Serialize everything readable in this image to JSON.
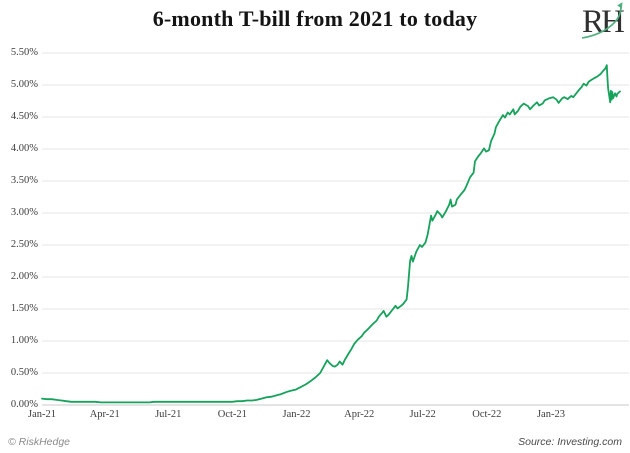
{
  "header": {
    "title": "6-month T-bill from 2021 to today",
    "logo_text": "RH"
  },
  "footer": {
    "left": "© RiskHedge",
    "right": "Source: Investing.com"
  },
  "colors": {
    "line": "#17a25c",
    "grid": "#e5e5e5",
    "axis_line": "#c9c9c9",
    "axis_text": "#3c3c3c",
    "title_text": "#141414",
    "logo_text": "#303030",
    "logo_arrow": "#4fae7e"
  },
  "chart_data": {
    "type": "line",
    "title": "6-month T-bill from 2021 to today",
    "xlabel": "",
    "ylabel": "",
    "ylim": [
      0,
      5.5
    ],
    "grid": "horizontal",
    "legend": "none",
    "y_ticks": [
      {
        "value": 0.0,
        "label": "0.00%"
      },
      {
        "value": 0.5,
        "label": "0.50%"
      },
      {
        "value": 1.0,
        "label": "1.00%"
      },
      {
        "value": 1.5,
        "label": "1.50%"
      },
      {
        "value": 2.0,
        "label": "2.00%"
      },
      {
        "value": 2.5,
        "label": "2.50%"
      },
      {
        "value": 3.0,
        "label": "3.00%"
      },
      {
        "value": 3.5,
        "label": "3.50%"
      },
      {
        "value": 4.0,
        "label": "4.00%"
      },
      {
        "value": 4.5,
        "label": "4.50%"
      },
      {
        "value": 5.0,
        "label": "5.00%"
      },
      {
        "value": 5.5,
        "label": "5.50%"
      }
    ],
    "x_ticks": [
      {
        "date": "2021-01-01",
        "label": "Jan-21"
      },
      {
        "date": "2021-04-01",
        "label": "Apr-21"
      },
      {
        "date": "2021-07-01",
        "label": "Jul-21"
      },
      {
        "date": "2021-10-01",
        "label": "Oct-21"
      },
      {
        "date": "2022-01-01",
        "label": "Jan-22"
      },
      {
        "date": "2022-04-01",
        "label": "Apr-22"
      },
      {
        "date": "2022-07-01",
        "label": "Jul-22"
      },
      {
        "date": "2022-10-01",
        "label": "Oct-22"
      },
      {
        "date": "2023-01-01",
        "label": "Jan-23"
      }
    ],
    "series": [
      {
        "name": "6-month T-bill yield (%)",
        "color": "#17a25c",
        "points": [
          [
            "2021-01-01",
            0.1
          ],
          [
            "2021-01-08",
            0.09
          ],
          [
            "2021-01-15",
            0.09
          ],
          [
            "2021-01-22",
            0.08
          ],
          [
            "2021-01-29",
            0.07
          ],
          [
            "2021-02-05",
            0.06
          ],
          [
            "2021-02-12",
            0.05
          ],
          [
            "2021-02-19",
            0.05
          ],
          [
            "2021-02-26",
            0.05
          ],
          [
            "2021-03-05",
            0.05
          ],
          [
            "2021-03-12",
            0.05
          ],
          [
            "2021-03-19",
            0.05
          ],
          [
            "2021-03-26",
            0.04
          ],
          [
            "2021-04-02",
            0.04
          ],
          [
            "2021-04-09",
            0.04
          ],
          [
            "2021-04-16",
            0.04
          ],
          [
            "2021-04-23",
            0.04
          ],
          [
            "2021-04-30",
            0.04
          ],
          [
            "2021-05-07",
            0.04
          ],
          [
            "2021-05-14",
            0.04
          ],
          [
            "2021-05-21",
            0.04
          ],
          [
            "2021-05-28",
            0.04
          ],
          [
            "2021-06-04",
            0.04
          ],
          [
            "2021-06-11",
            0.05
          ],
          [
            "2021-06-18",
            0.05
          ],
          [
            "2021-06-25",
            0.05
          ],
          [
            "2021-07-02",
            0.05
          ],
          [
            "2021-07-09",
            0.05
          ],
          [
            "2021-07-16",
            0.05
          ],
          [
            "2021-07-23",
            0.05
          ],
          [
            "2021-07-30",
            0.05
          ],
          [
            "2021-08-06",
            0.05
          ],
          [
            "2021-08-13",
            0.05
          ],
          [
            "2021-08-20",
            0.05
          ],
          [
            "2021-08-27",
            0.05
          ],
          [
            "2021-09-03",
            0.05
          ],
          [
            "2021-09-10",
            0.05
          ],
          [
            "2021-09-17",
            0.05
          ],
          [
            "2021-09-24",
            0.05
          ],
          [
            "2021-10-01",
            0.05
          ],
          [
            "2021-10-08",
            0.06
          ],
          [
            "2021-10-15",
            0.06
          ],
          [
            "2021-10-22",
            0.07
          ],
          [
            "2021-10-29",
            0.07
          ],
          [
            "2021-11-05",
            0.08
          ],
          [
            "2021-11-12",
            0.1
          ],
          [
            "2021-11-19",
            0.12
          ],
          [
            "2021-11-26",
            0.13
          ],
          [
            "2021-12-03",
            0.15
          ],
          [
            "2021-12-10",
            0.17
          ],
          [
            "2021-12-17",
            0.2
          ],
          [
            "2021-12-23",
            0.22
          ],
          [
            "2021-12-31",
            0.24
          ],
          [
            "2022-01-07",
            0.28
          ],
          [
            "2022-01-14",
            0.32
          ],
          [
            "2022-01-21",
            0.37
          ],
          [
            "2022-01-28",
            0.43
          ],
          [
            "2022-02-04",
            0.5
          ],
          [
            "2022-02-10",
            0.62
          ],
          [
            "2022-02-14",
            0.7
          ],
          [
            "2022-02-17",
            0.66
          ],
          [
            "2022-02-22",
            0.61
          ],
          [
            "2022-02-25",
            0.6
          ],
          [
            "2022-03-01",
            0.63
          ],
          [
            "2022-03-04",
            0.68
          ],
          [
            "2022-03-08",
            0.63
          ],
          [
            "2022-03-11",
            0.7
          ],
          [
            "2022-03-16",
            0.79
          ],
          [
            "2022-03-21",
            0.88
          ],
          [
            "2022-03-25",
            0.96
          ],
          [
            "2022-03-30",
            1.02
          ],
          [
            "2022-04-05",
            1.08
          ],
          [
            "2022-04-08",
            1.13
          ],
          [
            "2022-04-13",
            1.18
          ],
          [
            "2022-04-20",
            1.26
          ],
          [
            "2022-04-26",
            1.32
          ],
          [
            "2022-04-29",
            1.38
          ],
          [
            "2022-05-04",
            1.44
          ],
          [
            "2022-05-06",
            1.47
          ],
          [
            "2022-05-10",
            1.38
          ],
          [
            "2022-05-13",
            1.41
          ],
          [
            "2022-05-18",
            1.48
          ],
          [
            "2022-05-23",
            1.55
          ],
          [
            "2022-05-26",
            1.51
          ],
          [
            "2022-05-31",
            1.55
          ],
          [
            "2022-06-03",
            1.58
          ],
          [
            "2022-06-08",
            1.65
          ],
          [
            "2022-06-10",
            1.85
          ],
          [
            "2022-06-13",
            2.25
          ],
          [
            "2022-06-15",
            2.33
          ],
          [
            "2022-06-17",
            2.24
          ],
          [
            "2022-06-22",
            2.4
          ],
          [
            "2022-06-27",
            2.5
          ],
          [
            "2022-06-30",
            2.47
          ],
          [
            "2022-07-05",
            2.54
          ],
          [
            "2022-07-08",
            2.66
          ],
          [
            "2022-07-13",
            2.96
          ],
          [
            "2022-07-15",
            2.88
          ],
          [
            "2022-07-19",
            2.96
          ],
          [
            "2022-07-22",
            3.03
          ],
          [
            "2022-07-27",
            2.97
          ],
          [
            "2022-07-29",
            2.93
          ],
          [
            "2022-08-03",
            3.02
          ],
          [
            "2022-08-08",
            3.13
          ],
          [
            "2022-08-10",
            3.21
          ],
          [
            "2022-08-12",
            3.1
          ],
          [
            "2022-08-17",
            3.13
          ],
          [
            "2022-08-19",
            3.21
          ],
          [
            "2022-08-24",
            3.28
          ],
          [
            "2022-08-30",
            3.36
          ],
          [
            "2022-09-02",
            3.43
          ],
          [
            "2022-09-07",
            3.56
          ],
          [
            "2022-09-12",
            3.63
          ],
          [
            "2022-09-14",
            3.81
          ],
          [
            "2022-09-19",
            3.89
          ],
          [
            "2022-09-22",
            3.93
          ],
          [
            "2022-09-27",
            4.01
          ],
          [
            "2022-09-30",
            3.96
          ],
          [
            "2022-10-04",
            3.98
          ],
          [
            "2022-10-07",
            4.12
          ],
          [
            "2022-10-12",
            4.24
          ],
          [
            "2022-10-14",
            4.34
          ],
          [
            "2022-10-19",
            4.44
          ],
          [
            "2022-10-24",
            4.53
          ],
          [
            "2022-10-27",
            4.49
          ],
          [
            "2022-10-31",
            4.57
          ],
          [
            "2022-11-03",
            4.54
          ],
          [
            "2022-11-08",
            4.62
          ],
          [
            "2022-11-10",
            4.54
          ],
          [
            "2022-11-15",
            4.6
          ],
          [
            "2022-11-18",
            4.66
          ],
          [
            "2022-11-23",
            4.71
          ],
          [
            "2022-11-29",
            4.67
          ],
          [
            "2022-12-02",
            4.62
          ],
          [
            "2022-12-07",
            4.68
          ],
          [
            "2022-12-12",
            4.73
          ],
          [
            "2022-12-15",
            4.68
          ],
          [
            "2022-12-20",
            4.71
          ],
          [
            "2022-12-23",
            4.76
          ],
          [
            "2022-12-29",
            4.79
          ],
          [
            "2023-01-04",
            4.81
          ],
          [
            "2023-01-09",
            4.77
          ],
          [
            "2023-01-12",
            4.72
          ],
          [
            "2023-01-17",
            4.79
          ],
          [
            "2023-01-20",
            4.81
          ],
          [
            "2023-01-25",
            4.78
          ],
          [
            "2023-01-30",
            4.83
          ],
          [
            "2023-02-02",
            4.81
          ],
          [
            "2023-02-07",
            4.88
          ],
          [
            "2023-02-10",
            4.92
          ],
          [
            "2023-02-14",
            4.97
          ],
          [
            "2023-02-17",
            5.02
          ],
          [
            "2023-02-21",
            4.99
          ],
          [
            "2023-02-24",
            5.05
          ],
          [
            "2023-02-28",
            5.08
          ],
          [
            "2023-03-03",
            5.1
          ],
          [
            "2023-03-08",
            5.13
          ],
          [
            "2023-03-13",
            5.17
          ],
          [
            "2023-03-16",
            5.21
          ],
          [
            "2023-03-20",
            5.26
          ],
          [
            "2023-03-22",
            5.31
          ],
          [
            "2023-03-23",
            5.12
          ],
          [
            "2023-03-24",
            4.95
          ],
          [
            "2023-03-27",
            4.73
          ],
          [
            "2023-03-28",
            4.91
          ],
          [
            "2023-03-29",
            4.77
          ],
          [
            "2023-03-30",
            4.89
          ],
          [
            "2023-03-31",
            4.79
          ],
          [
            "2023-04-03",
            4.87
          ],
          [
            "2023-04-05",
            4.82
          ],
          [
            "2023-04-06",
            4.86
          ],
          [
            "2023-04-10",
            4.9
          ]
        ]
      }
    ]
  }
}
